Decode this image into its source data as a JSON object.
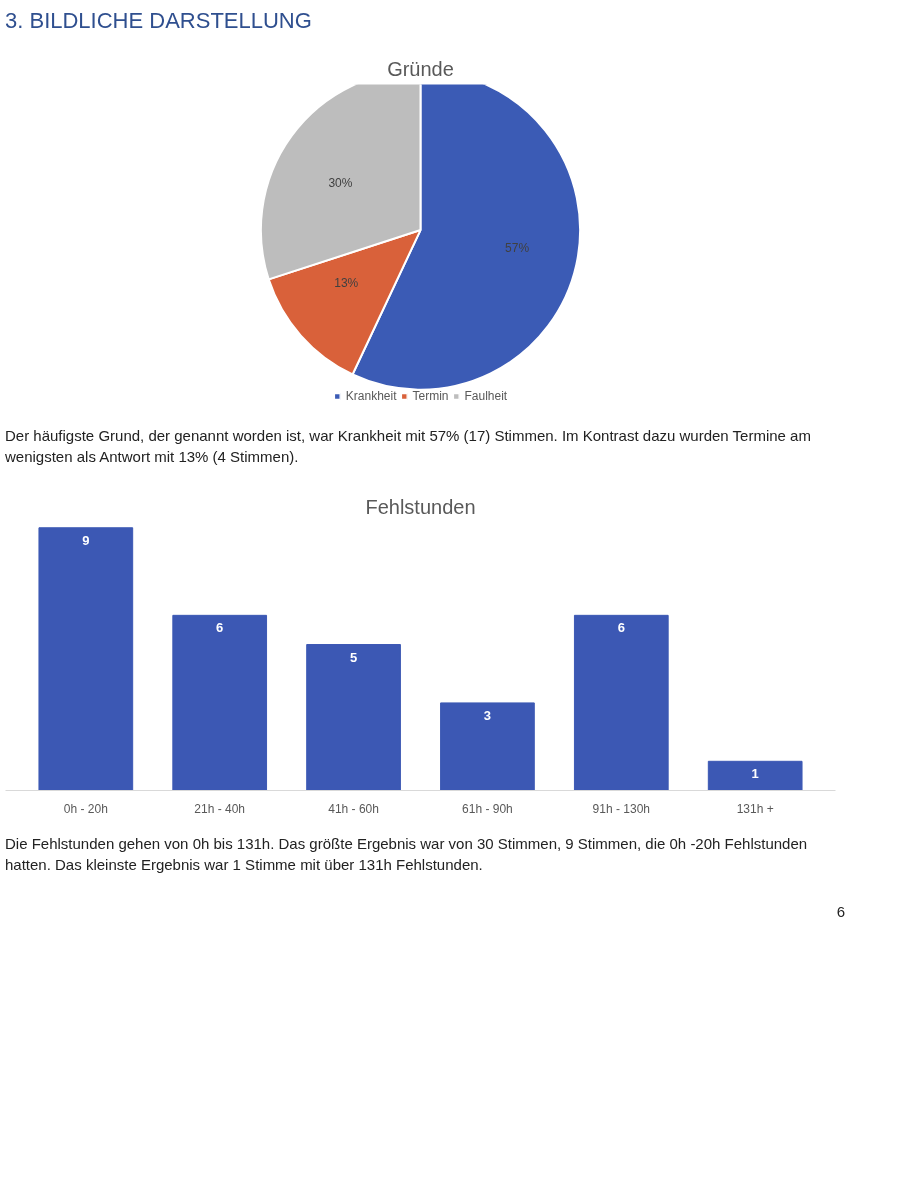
{
  "chart_data": [
    {
      "type": "pie",
      "title": "Gründe",
      "categories": [
        "Krankheit",
        "Termin",
        "Faulheit"
      ],
      "values": [
        57,
        13,
        30
      ],
      "colors": [
        "#3b5bb5",
        "#d9613a",
        "#bdbdbd"
      ],
      "legend": "bottom",
      "value_labels": [
        "57%",
        "13%",
        "30%"
      ],
      "annotations": [
        "3. BILDLICHE DARSTELLUNG",
        "Der häufigste Grund, der genannt worden ist, war Krankheit mit 57% (17) Stimmen. Im Kontrast dazu wurden Termine am wenigsten als Antwort mit 13% (4 Stimmen)."
      ]
    },
    {
      "type": "bar",
      "title": "Fehlstunden",
      "categories": [
        "0h - 20h",
        "21h - 40h",
        "41h - 60h",
        "61h - 90h",
        "91h - 130h",
        "131h +"
      ],
      "values": [
        9,
        6,
        5,
        3,
        6,
        1
      ],
      "color": "#3c58b4",
      "data_labels": true,
      "grid": false,
      "annotations": [
        "Die Fehlstunden gehen von 0h bis 131h. Das größte Ergebnis war von 30 Stimmen, 9 Stimmen, die 0h -20h Fehlstunden hatten. Das kleinste Ergebnis war 1 Stimme mit über 131h Fehlstunden.",
        "6"
      ]
    }
  ]
}
